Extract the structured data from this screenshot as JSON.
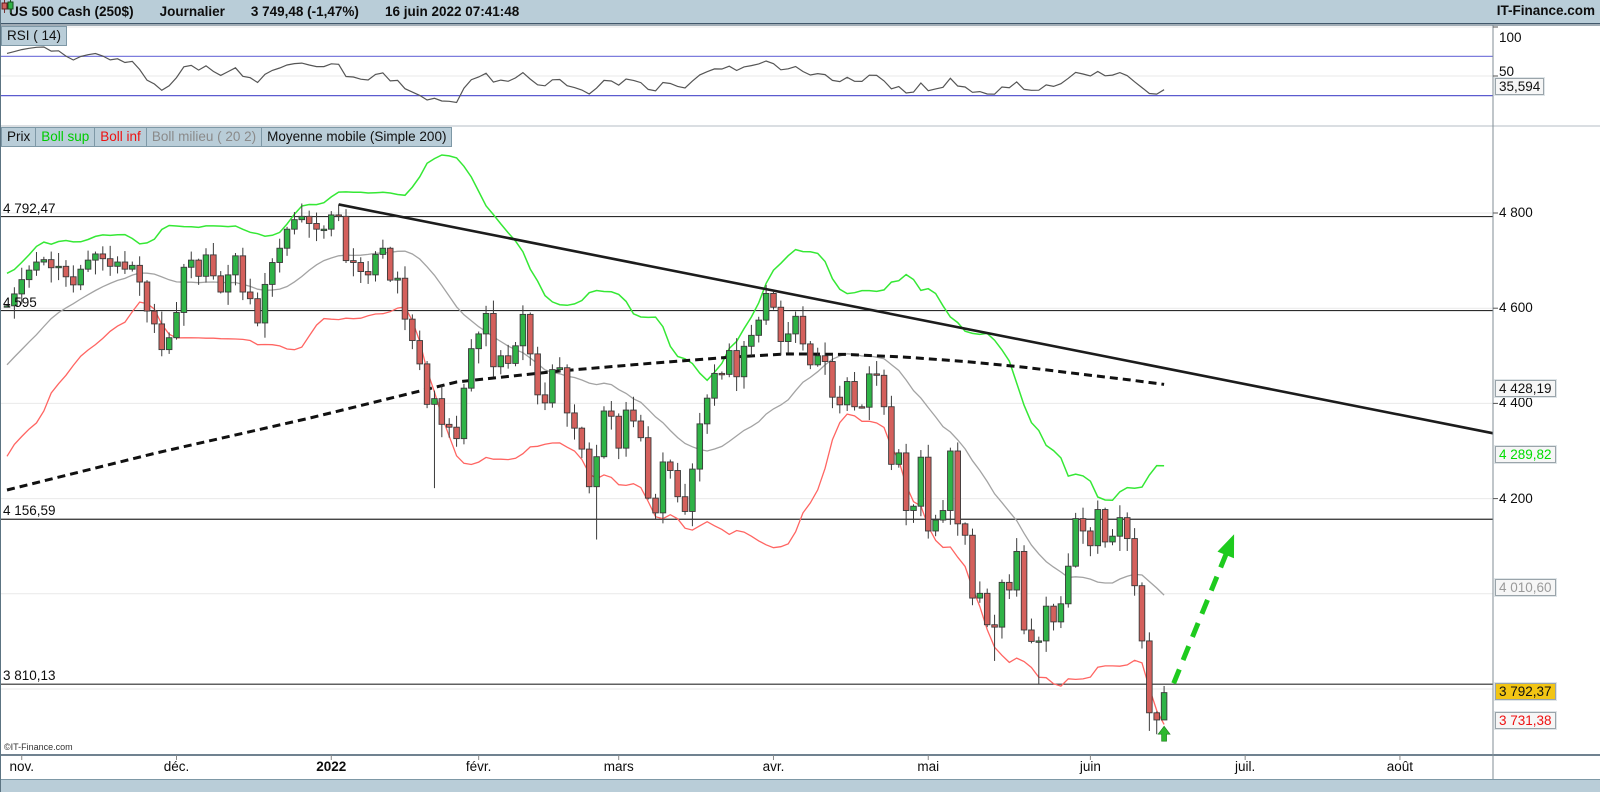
{
  "title_bar": {
    "instrument": "US 500 Cash (250$)",
    "timeframe": "Journalier",
    "quote": "3 749,48 (-1,47%)",
    "datetime": "16 juin 2022 07:41:48",
    "brand": "IT-Finance.com"
  },
  "rsi_panel": {
    "label": "RSI ( 14)",
    "tick_top": "100",
    "tick_mid": "50",
    "value_box": "35,594"
  },
  "legend": {
    "items": [
      {
        "label": "Prix",
        "color": "#111111"
      },
      {
        "label": "Boll sup",
        "color": "#00cc00"
      },
      {
        "label": "Boll inf",
        "color": "#ee1111"
      },
      {
        "label": "Boll milieu ( 20 2)",
        "color": "#8a8a8a"
      },
      {
        "label": "Moyenne mobile (Simple 200)",
        "color": "#111111"
      }
    ]
  },
  "copyright": "©IT-Finance.com",
  "chart_data": {
    "type": "candlestick",
    "title": "US 500 Cash (250$) - Journalier",
    "legend_series": [
      "Prix",
      "Boll sup",
      "Boll inf",
      "Boll milieu ( 20 2)",
      "Moyenne mobile (Simple 200)"
    ],
    "y_range": {
      "min": 3660,
      "max": 4930
    },
    "rsi_panel": {
      "range": [
        0,
        100
      ],
      "overbought": 70,
      "oversold": 30,
      "period": 14,
      "last_value": 35.594
    },
    "x_labels": [
      {
        "label": "nov.",
        "t": 2,
        "bold": false
      },
      {
        "label": "déc.",
        "t": 23,
        "bold": false
      },
      {
        "label": "2022",
        "t": 44,
        "bold": true
      },
      {
        "label": "févr.",
        "t": 64,
        "bold": false
      },
      {
        "label": "mars",
        "t": 83,
        "bold": false
      },
      {
        "label": "avr.",
        "t": 104,
        "bold": false
      },
      {
        "label": "mai",
        "t": 125,
        "bold": false
      },
      {
        "label": "juin",
        "t": 147,
        "bold": false
      },
      {
        "label": "juil.",
        "t": 168,
        "bold": false
      },
      {
        "label": "août",
        "t": 189,
        "bold": false
      }
    ],
    "y_ticks": [
      {
        "label": "4 800",
        "p": 4800
      },
      {
        "label": "4 600",
        "p": 4600
      },
      {
        "label": "4 400",
        "p": 4400
      },
      {
        "label": "4 200",
        "p": 4200
      }
    ],
    "y_boxes": [
      {
        "label": "4 428,19",
        "p": 4428.19,
        "color": "#111111",
        "bg": "#f6f6f6"
      },
      {
        "label": "4 289,82",
        "p": 4289.82,
        "color": "#00dd00",
        "bg": "#f6f6f6"
      },
      {
        "label": "4 010,60",
        "p": 4010.6,
        "color": "#9a9a9a",
        "bg": "#f6f6f6"
      },
      {
        "label": "3 792,37",
        "p": 3792.37,
        "color": "#111111",
        "bg": "#f2c514"
      },
      {
        "label": "3 731,38",
        "p": 3731.38,
        "color": "#ee1111",
        "bg": "#f6f6f6"
      }
    ],
    "levels": [
      {
        "label": "4 792,47",
        "p": 4792.47
      },
      {
        "label": "4 595",
        "p": 4595
      },
      {
        "label": "4 156,59",
        "p": 4156.59
      },
      {
        "label": "3 810,13",
        "p": 3810.13
      }
    ],
    "gridlines": [
      4800,
      4600,
      4400,
      4200,
      4000,
      3800
    ],
    "pre_closes": [
      4357,
      4300,
      4346,
      4363,
      4391,
      4361,
      4350,
      4438,
      4468,
      4471,
      4486,
      4520,
      4536,
      4544,
      4549,
      4575,
      4596,
      4551,
      4566,
      4605
    ],
    "closes": [
      4605,
      4630,
      4660,
      4680,
      4697,
      4702,
      4685,
      4688,
      4666,
      4649,
      4682,
      4701,
      4714,
      4704,
      4688,
      4697,
      4682,
      4690,
      4655,
      4594,
      4567,
      4513,
      4538,
      4591,
      4686,
      4701,
      4667,
      4712,
      4668,
      4634,
      4670,
      4710,
      4634,
      4620,
      4569,
      4650,
      4696,
      4726,
      4766,
      4786,
      4793,
      4778,
      4766,
      4766,
      4796,
      4793,
      4700,
      4696,
      4677,
      4670,
      4713,
      4726,
      4659,
      4663,
      4577,
      4532,
      4483,
      4398,
      4410,
      4356,
      4350,
      4326,
      4432,
      4515,
      4546,
      4589,
      4477,
      4500,
      4484,
      4521,
      4587,
      4504,
      4418,
      4401,
      4471,
      4475,
      4380,
      4348,
      4304,
      4225,
      4288,
      4384,
      4373,
      4306,
      4386,
      4363,
      4328,
      4201,
      4170,
      4277,
      4259,
      4204,
      4173,
      4262,
      4357,
      4411,
      4463,
      4461,
      4511,
      4456,
      4520,
      4543,
      4575,
      4631,
      4602,
      4530,
      4546,
      4583,
      4525,
      4481,
      4500,
      4488,
      4413,
      4397,
      4446,
      4393,
      4392,
      4462,
      4459,
      4393,
      4272,
      4296,
      4175,
      4184,
      4287,
      4132,
      4155,
      4175,
      4300,
      4147,
      4123,
      3991,
      4001,
      3935,
      3930,
      4024,
      4008,
      4089,
      3924,
      3900,
      3901,
      3974,
      3941,
      3979,
      4058,
      4158,
      4132,
      4101,
      4177,
      4109,
      4121,
      4160,
      4116,
      4017,
      3901,
      3750,
      3735,
      3792.37
    ],
    "low_overrides": {
      "58": 4222,
      "80": 4114,
      "88": 4156.59,
      "134": 3859,
      "140": 3810.13,
      "155": 3712,
      "156": 3705,
      "157": 3735
    },
    "high_overrides": {
      "44": 4804,
      "45": 4818
    },
    "bollinger": {
      "period": 20,
      "mult": 2,
      "sup_last": 4289.82,
      "mid_last": 4010.6,
      "inf_last": 3731.38
    },
    "sma200_points": [
      [
        0,
        4218
      ],
      [
        20,
        4295
      ],
      [
        41,
        4369
      ],
      [
        61,
        4445
      ],
      [
        75,
        4468
      ],
      [
        88,
        4485
      ],
      [
        98,
        4497
      ],
      [
        106,
        4504
      ],
      [
        114,
        4503
      ],
      [
        122,
        4497
      ],
      [
        130,
        4488
      ],
      [
        138,
        4476
      ],
      [
        146,
        4461
      ],
      [
        152,
        4450
      ],
      [
        157,
        4440
      ]
    ],
    "trendline": {
      "t1": 45,
      "p1": 4818,
      "t2": 204,
      "p2": 4330
    },
    "arrow": {
      "t1": 158.3,
      "p1": 3812,
      "t2": 166.5,
      "p2": 4125
    },
    "buy_marker": {
      "t": 157,
      "p": 3705
    },
    "colors": {
      "up": "#2fb347",
      "down": "#d4605c",
      "wick": "#3a3a3a",
      "boll_sup": "#35e835",
      "boll_inf": "#ff6562",
      "boll_mid": "#a3a3a3",
      "sma200": "#111111",
      "trend": "#1c1c1c",
      "arrow": "#1ecb1e",
      "rsi_line": "#555555",
      "rsi_level": "#7d7ddd",
      "grid": "#e9e9e9",
      "level": "#2b2b2b"
    }
  }
}
